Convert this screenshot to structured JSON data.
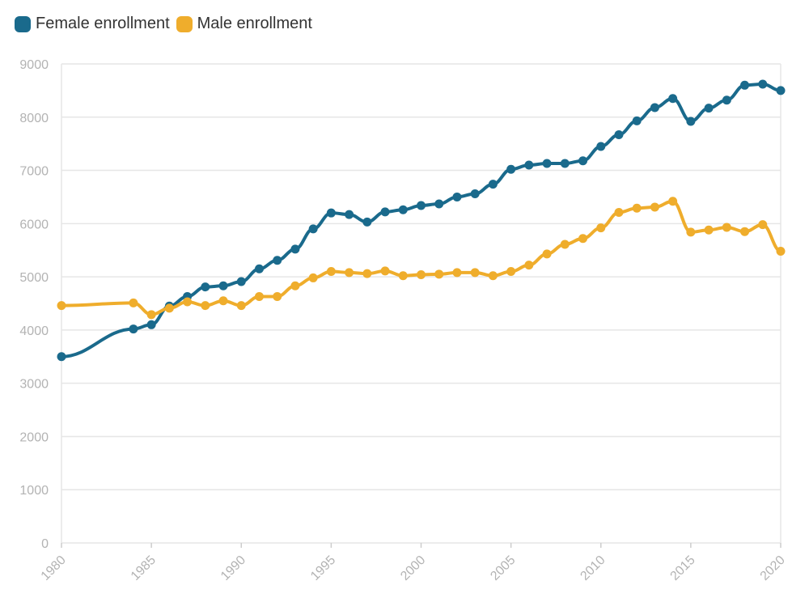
{
  "chart_data": {
    "type": "line",
    "title": "",
    "xlabel": "",
    "ylabel": "",
    "xlim": [
      1980,
      2020
    ],
    "ylim": [
      0,
      9000
    ],
    "yticks": [
      0,
      1000,
      2000,
      3000,
      4000,
      5000,
      6000,
      7000,
      8000,
      9000
    ],
    "xticks": [
      1980,
      1985,
      1990,
      1995,
      2000,
      2005,
      2010,
      2015,
      2020
    ],
    "grid": true,
    "legend_position": "top-left",
    "series": [
      {
        "name": "Female enrollment",
        "color": "#1a6a8c",
        "x": [
          1980,
          1984,
          1985,
          1986,
          1987,
          1988,
          1989,
          1990,
          1991,
          1992,
          1993,
          1994,
          1995,
          1996,
          1997,
          1998,
          1999,
          2000,
          2001,
          2002,
          2003,
          2004,
          2005,
          2006,
          2007,
          2008,
          2009,
          2010,
          2011,
          2012,
          2013,
          2014,
          2015,
          2016,
          2017,
          2018,
          2019,
          2020
        ],
        "values": [
          3500,
          4020,
          4100,
          4450,
          4630,
          4810,
          4830,
          4910,
          5150,
          5310,
          5520,
          5900,
          6200,
          6170,
          6030,
          6220,
          6260,
          6340,
          6370,
          6500,
          6560,
          6740,
          7020,
          7100,
          7130,
          7130,
          7180,
          7450,
          7670,
          7930,
          8180,
          8350,
          7920,
          8170,
          8320,
          8600,
          8620,
          8500
        ]
      },
      {
        "name": "Male enrollment",
        "color": "#efad2c",
        "x": [
          1980,
          1984,
          1985,
          1986,
          1987,
          1988,
          1989,
          1990,
          1991,
          1992,
          1993,
          1994,
          1995,
          1996,
          1997,
          1998,
          1999,
          2000,
          2001,
          2002,
          2003,
          2004,
          2005,
          2006,
          2007,
          2008,
          2009,
          2010,
          2011,
          2012,
          2013,
          2014,
          2015,
          2016,
          2017,
          2018,
          2019,
          2020
        ],
        "values": [
          4460,
          4510,
          4290,
          4410,
          4530,
          4460,
          4550,
          4460,
          4630,
          4630,
          4830,
          4980,
          5100,
          5080,
          5060,
          5110,
          5020,
          5040,
          5050,
          5080,
          5080,
          5020,
          5100,
          5220,
          5430,
          5610,
          5720,
          5920,
          6210,
          6290,
          6310,
          6420,
          5840,
          5880,
          5930,
          5850,
          5980,
          5480
        ]
      }
    ]
  }
}
